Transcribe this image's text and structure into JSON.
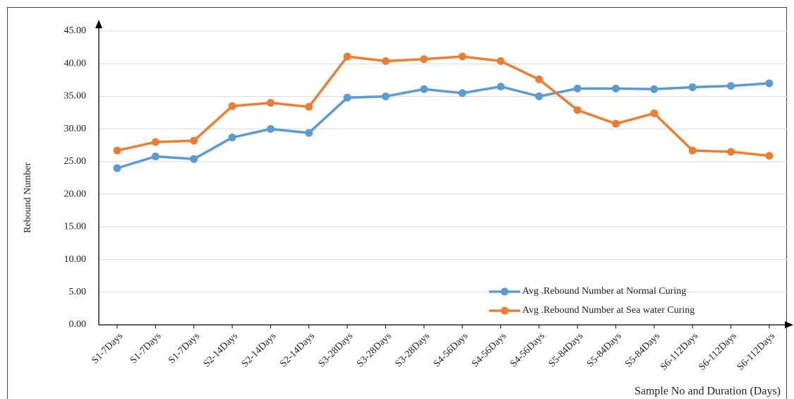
{
  "chart_data": {
    "type": "line",
    "x_label": "Sample No and Duration (Days)",
    "y_label": "Rebound Number",
    "categories": [
      "S1-7Days",
      "S1-7Days",
      "S1-7Days",
      "S2-14Days",
      "S2-14Days",
      "S2-14Days",
      "S3-28Days",
      "S3-28Days",
      "S3-28Days",
      "S4-56Days",
      "S4-56Days",
      "S4-56Days",
      "S5-84Days",
      "S5-84Days",
      "S5-84Days",
      "S6-112Days",
      "S6-112Days",
      "S6-112Days"
    ],
    "series": [
      {
        "name": "Avg .Rebound Number at Normal Curing",
        "color": "#5b9bd5",
        "values": [
          24.0,
          25.8,
          25.4,
          28.7,
          30.0,
          29.4,
          34.8,
          35.0,
          36.1,
          35.5,
          36.5,
          35.0,
          36.2,
          36.2,
          36.1,
          36.4,
          36.6,
          37.0
        ]
      },
      {
        "name": "Avg .Rebound Number at Sea water Curing",
        "color": "#ed7d31",
        "values": [
          26.7,
          28.0,
          28.2,
          33.5,
          34.0,
          33.4,
          41.1,
          40.4,
          40.7,
          41.1,
          40.4,
          37.6,
          32.9,
          30.8,
          32.4,
          26.7,
          26.5,
          25.9
        ]
      }
    ],
    "ylim": [
      0,
      45
    ],
    "yticks": [
      {
        "value": 0,
        "label": "0.00"
      },
      {
        "value": 5,
        "label": "5.00"
      },
      {
        "value": 10,
        "label": "10.00"
      },
      {
        "value": 15,
        "label": "15.00"
      },
      {
        "value": 20,
        "label": "20.00"
      },
      {
        "value": 25,
        "label": "25.00"
      },
      {
        "value": 30,
        "label": "30.00"
      },
      {
        "value": 35,
        "label": "35.00"
      },
      {
        "value": 40,
        "label": "40.00"
      },
      {
        "value": 45,
        "label": "45.00"
      }
    ],
    "grid": true,
    "legend": "lower right"
  }
}
